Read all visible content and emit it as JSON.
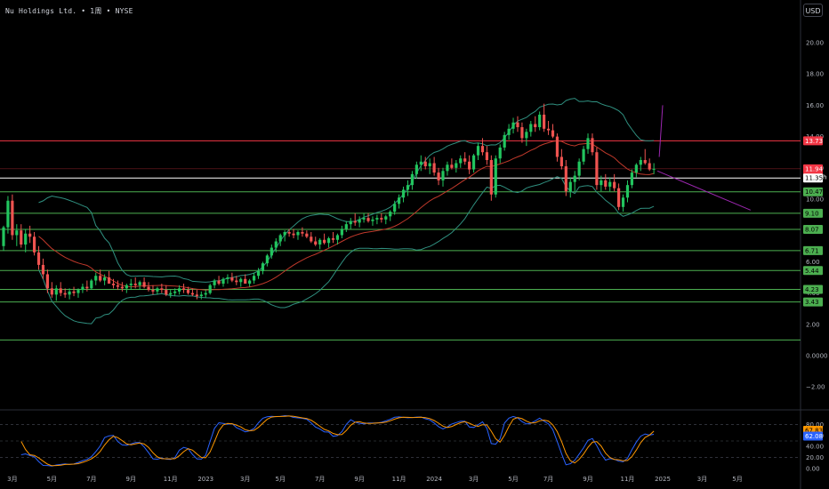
{
  "header": {
    "title": "Nu Holdings Ltd. • 1周 • NYSE",
    "currency": "USD"
  },
  "colors": {
    "up": "#26a69a",
    "up_bright": "#22c55e",
    "down": "#ef5350",
    "resistance": "#f23645",
    "support": "#4caf50",
    "bollinger": "#2f8f7f",
    "ma": "#c0392b",
    "trendline": "#9c27b0",
    "stoch_k": "#2962ff",
    "stoch_d": "#ff9800"
  },
  "chart_data": [
    {
      "type": "candlestick",
      "title": "Nu Holdings Ltd. • 1周 • NYSE",
      "y_axis": {
        "ticks": [
          "20.00",
          "18.00",
          "16.00",
          "14.00",
          "12.00",
          "10.00",
          "8.00",
          "6.00",
          "4.00",
          "2.00",
          "0.0000",
          "−2.00"
        ],
        "tick_values": [
          20,
          18,
          16,
          14,
          12,
          10,
          8,
          6,
          4,
          2,
          0,
          -2
        ],
        "range": [
          -3,
          22
        ]
      },
      "x_axis": {
        "ticks": [
          "3月",
          "5月",
          "7月",
          "9月",
          "11月",
          "2023",
          "3月",
          "5月",
          "7月",
          "9月",
          "11月",
          "2024",
          "3月",
          "5月",
          "7月",
          "9月",
          "11月",
          "2025",
          "3月",
          "5月"
        ],
        "tick_index": [
          2,
          11,
          20,
          29,
          38,
          46,
          55,
          63,
          72,
          81,
          90,
          98,
          107,
          116,
          124,
          133,
          142,
          150,
          159,
          167
        ]
      },
      "candles": [
        [
          7.0,
          8.3,
          6.7,
          8.2
        ],
        [
          8.2,
          10.2,
          7.8,
          9.9
        ],
        [
          9.9,
          10.3,
          7.4,
          7.7
        ],
        [
          7.7,
          8.4,
          7.0,
          8.0
        ],
        [
          8.0,
          8.4,
          6.9,
          7.1
        ],
        [
          7.1,
          8.1,
          6.6,
          7.8
        ],
        [
          7.8,
          8.3,
          7.2,
          7.6
        ],
        [
          7.6,
          7.9,
          6.4,
          6.6
        ],
        [
          6.6,
          7.0,
          5.5,
          5.8
        ],
        [
          5.8,
          6.2,
          4.9,
          5.2
        ],
        [
          5.2,
          5.5,
          4.0,
          4.3
        ],
        [
          4.3,
          4.7,
          3.7,
          3.9
        ],
        [
          3.9,
          4.5,
          3.5,
          4.3
        ],
        [
          4.3,
          4.7,
          3.8,
          4.0
        ],
        [
          4.0,
          4.3,
          3.7,
          3.9
        ],
        [
          3.9,
          4.3,
          3.6,
          4.1
        ],
        [
          4.1,
          4.4,
          3.8,
          4.0
        ],
        [
          4.0,
          4.3,
          3.7,
          4.2
        ],
        [
          4.2,
          4.6,
          4.0,
          4.4
        ],
        [
          4.4,
          4.8,
          4.1,
          4.3
        ],
        [
          4.3,
          4.9,
          4.2,
          4.8
        ],
        [
          4.8,
          5.3,
          4.5,
          5.1
        ],
        [
          5.1,
          5.5,
          4.7,
          4.8
        ],
        [
          4.8,
          5.2,
          4.5,
          5.0
        ],
        [
          5.0,
          5.4,
          4.7,
          4.6
        ],
        [
          4.6,
          4.9,
          4.3,
          4.5
        ],
        [
          4.5,
          4.8,
          4.2,
          4.4
        ],
        [
          4.4,
          4.7,
          4.1,
          4.3
        ],
        [
          4.3,
          4.6,
          4.0,
          4.5
        ],
        [
          4.5,
          4.9,
          4.2,
          4.6
        ],
        [
          4.6,
          5.0,
          4.3,
          4.5
        ],
        [
          4.5,
          4.8,
          4.2,
          4.7
        ],
        [
          4.7,
          5.0,
          4.3,
          4.4
        ],
        [
          4.4,
          4.7,
          4.1,
          4.2
        ],
        [
          4.2,
          4.5,
          3.9,
          4.1
        ],
        [
          4.1,
          4.4,
          3.9,
          4.3
        ],
        [
          4.3,
          4.6,
          4.0,
          4.2
        ],
        [
          4.2,
          4.5,
          3.8,
          3.9
        ],
        [
          3.9,
          4.2,
          3.7,
          4.0
        ],
        [
          4.0,
          4.3,
          3.8,
          4.1
        ],
        [
          4.1,
          4.5,
          3.9,
          4.3
        ],
        [
          4.3,
          4.6,
          4.0,
          4.2
        ],
        [
          4.2,
          4.4,
          3.9,
          4.0
        ],
        [
          4.0,
          4.3,
          3.8,
          3.9
        ],
        [
          3.9,
          4.2,
          3.6,
          3.8
        ],
        [
          3.8,
          4.1,
          3.6,
          3.9
        ],
        [
          3.9,
          4.2,
          3.7,
          4.0
        ],
        [
          4.0,
          4.6,
          3.9,
          4.5
        ],
        [
          4.5,
          4.9,
          4.3,
          4.8
        ],
        [
          4.8,
          5.1,
          4.5,
          4.6
        ],
        [
          4.6,
          5.0,
          4.4,
          4.9
        ],
        [
          4.9,
          5.2,
          4.6,
          5.0
        ],
        [
          5.0,
          5.3,
          4.7,
          4.8
        ],
        [
          4.8,
          5.1,
          4.5,
          4.7
        ],
        [
          4.7,
          5.0,
          4.4,
          4.9
        ],
        [
          4.9,
          5.2,
          4.6,
          4.6
        ],
        [
          4.6,
          4.9,
          4.4,
          4.8
        ],
        [
          4.8,
          5.3,
          4.6,
          5.1
        ],
        [
          5.1,
          5.6,
          4.9,
          5.4
        ],
        [
          5.4,
          6.0,
          5.2,
          5.9
        ],
        [
          5.9,
          6.5,
          5.7,
          6.4
        ],
        [
          6.4,
          7.1,
          6.2,
          6.9
        ],
        [
          6.9,
          7.5,
          6.6,
          7.3
        ],
        [
          7.3,
          7.8,
          7.0,
          7.7
        ],
        [
          7.7,
          8.0,
          7.3,
          7.9
        ],
        [
          7.9,
          8.1,
          7.6,
          7.8
        ],
        [
          7.8,
          8.1,
          7.5,
          7.7
        ],
        [
          7.7,
          8.0,
          7.4,
          7.9
        ],
        [
          7.9,
          8.2,
          7.6,
          7.8
        ],
        [
          7.8,
          8.0,
          7.5,
          7.6
        ],
        [
          7.6,
          7.9,
          7.2,
          7.3
        ],
        [
          7.3,
          7.6,
          7.0,
          7.1
        ],
        [
          7.1,
          7.5,
          6.8,
          7.4
        ],
        [
          7.4,
          7.8,
          7.1,
          7.2
        ],
        [
          7.2,
          7.6,
          6.9,
          7.5
        ],
        [
          7.5,
          7.9,
          7.2,
          7.4
        ],
        [
          7.4,
          7.8,
          7.1,
          7.7
        ],
        [
          7.7,
          8.3,
          7.5,
          8.1
        ],
        [
          8.1,
          8.6,
          7.9,
          8.4
        ],
        [
          8.4,
          8.8,
          8.1,
          8.6
        ],
        [
          8.6,
          9.1,
          8.3,
          8.5
        ],
        [
          8.5,
          8.9,
          8.2,
          8.7
        ],
        [
          8.7,
          9.1,
          8.5,
          8.8
        ],
        [
          8.8,
          9.1,
          8.5,
          8.6
        ],
        [
          8.6,
          8.9,
          8.3,
          8.7
        ],
        [
          8.7,
          9.0,
          8.4,
          8.8
        ],
        [
          8.8,
          9.1,
          8.5,
          8.7
        ],
        [
          8.7,
          9.0,
          8.4,
          8.9
        ],
        [
          8.9,
          9.3,
          8.6,
          9.2
        ],
        [
          9.2,
          9.9,
          9.0,
          9.7
        ],
        [
          9.7,
          10.3,
          9.4,
          10.1
        ],
        [
          10.1,
          10.8,
          9.8,
          10.6
        ],
        [
          10.6,
          11.2,
          10.2,
          10.9
        ],
        [
          10.9,
          11.8,
          10.6,
          11.6
        ],
        [
          11.6,
          12.4,
          11.3,
          12.2
        ],
        [
          12.2,
          12.8,
          11.8,
          12.4
        ],
        [
          12.4,
          12.7,
          11.9,
          12.1
        ],
        [
          12.1,
          12.6,
          11.6,
          12.3
        ],
        [
          12.3,
          12.7,
          11.5,
          11.7
        ],
        [
          11.7,
          12.0,
          10.9,
          11.2
        ],
        [
          11.2,
          12.0,
          10.8,
          11.8
        ],
        [
          11.8,
          12.4,
          11.5,
          12.2
        ],
        [
          12.2,
          12.6,
          11.9,
          12.0
        ],
        [
          12.0,
          12.5,
          11.7,
          12.3
        ],
        [
          12.3,
          12.8,
          12.0,
          12.6
        ],
        [
          12.6,
          13.0,
          12.2,
          12.4
        ],
        [
          12.4,
          12.8,
          11.6,
          11.9
        ],
        [
          11.9,
          12.9,
          11.7,
          12.8
        ],
        [
          12.8,
          13.6,
          12.5,
          13.4
        ],
        [
          13.4,
          13.9,
          12.8,
          13.0
        ],
        [
          13.0,
          13.4,
          12.2,
          12.5
        ],
        [
          12.5,
          12.8,
          9.9,
          10.3
        ],
        [
          10.3,
          12.8,
          10.1,
          12.6
        ],
        [
          12.6,
          13.5,
          12.3,
          13.3
        ],
        [
          13.3,
          14.3,
          13.1,
          14.1
        ],
        [
          14.1,
          14.8,
          13.8,
          14.5
        ],
        [
          14.5,
          15.2,
          14.2,
          14.9
        ],
        [
          14.9,
          15.3,
          14.3,
          14.6
        ],
        [
          14.6,
          14.9,
          13.6,
          13.9
        ],
        [
          13.9,
          14.5,
          13.4,
          14.3
        ],
        [
          14.3,
          15.0,
          14.0,
          14.8
        ],
        [
          14.8,
          15.3,
          14.3,
          14.6
        ],
        [
          14.6,
          15.6,
          14.4,
          15.4
        ],
        [
          15.4,
          16.1,
          14.3,
          14.5
        ],
        [
          14.5,
          15.0,
          14.1,
          14.4
        ],
        [
          14.4,
          14.8,
          13.9,
          14.0
        ],
        [
          14.0,
          14.2,
          12.4,
          12.7
        ],
        [
          12.7,
          13.2,
          11.9,
          12.1
        ],
        [
          12.1,
          12.5,
          10.2,
          10.5
        ],
        [
          10.5,
          11.4,
          10.1,
          11.1
        ],
        [
          11.1,
          11.8,
          10.5,
          11.5
        ],
        [
          11.5,
          12.6,
          11.2,
          12.4
        ],
        [
          12.4,
          13.4,
          12.2,
          13.2
        ],
        [
          13.2,
          14.2,
          12.9,
          13.9
        ],
        [
          13.9,
          14.2,
          12.8,
          13.0
        ],
        [
          13.0,
          13.3,
          10.6,
          10.9
        ],
        [
          10.9,
          11.5,
          10.5,
          11.2
        ],
        [
          11.2,
          11.6,
          10.6,
          10.8
        ],
        [
          10.8,
          11.4,
          10.5,
          11.1
        ],
        [
          11.1,
          11.6,
          10.5,
          10.7
        ],
        [
          10.7,
          11.0,
          9.3,
          9.5
        ],
        [
          9.5,
          10.3,
          9.2,
          10.1
        ],
        [
          10.1,
          11.2,
          9.8,
          10.9
        ],
        [
          10.9,
          11.9,
          10.7,
          11.7
        ],
        [
          11.7,
          12.3,
          11.4,
          12.2
        ],
        [
          12.2,
          12.7,
          11.8,
          12.5
        ],
        [
          12.5,
          13.2,
          12.2,
          12.3
        ],
        [
          12.3,
          12.6,
          11.8,
          11.9
        ],
        [
          11.9,
          12.3,
          11.6,
          11.94
        ]
      ],
      "stochastic": {
        "axis_ticks": [
          "80.00",
          "60.00",
          "40.00",
          "20.00",
          "0.00"
        ],
        "tick_values": [
          80,
          60,
          40,
          20,
          0
        ],
        "k_last": 62.08,
        "d_last": 67.83
      }
    }
  ],
  "price_levels": [
    {
      "value": "13.73",
      "kind": "resistance"
    },
    {
      "value": "11.94",
      "kind": "current"
    },
    {
      "value": "1d 15h",
      "kind": "countdown"
    },
    {
      "value": "11.35",
      "kind": "white"
    },
    {
      "value": "10.47",
      "kind": "support"
    },
    {
      "value": "9.10",
      "kind": "support"
    },
    {
      "value": "8.07",
      "kind": "support"
    },
    {
      "value": "6.71",
      "kind": "support"
    },
    {
      "value": "5.44",
      "kind": "support"
    },
    {
      "value": "4.23",
      "kind": "support"
    },
    {
      "value": "3.43",
      "kind": "support"
    }
  ]
}
